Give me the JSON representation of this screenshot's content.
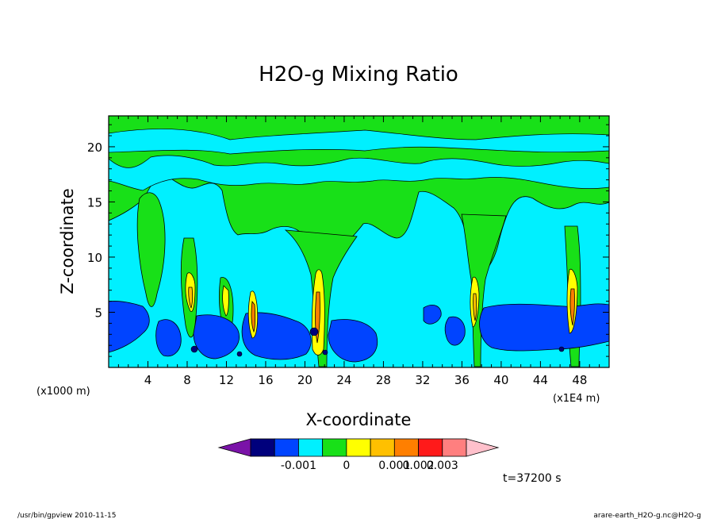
{
  "chart_data": {
    "type": "heatmap",
    "title": "H2O-g Mixing Ratio",
    "xlabel": "X-coordinate",
    "ylabel": "Z-coordinate",
    "x_unit_left": "(x1000 m)",
    "x_unit_right": "(x1E4 m)",
    "xlim": [
      0,
      51
    ],
    "ylim": [
      0,
      22.8
    ],
    "x_ticks": [
      4,
      8,
      12,
      16,
      20,
      24,
      28,
      32,
      36,
      40,
      44,
      48
    ],
    "y_ticks": [
      5,
      10,
      15,
      20
    ],
    "colorbar": {
      "colors": [
        "#7a13a8",
        "#00007c",
        "#0044ff",
        "#00f0ff",
        "#18e018",
        "#ffff00",
        "#ffc000",
        "#ff7f00",
        "#ff1a1a",
        "#ff7f7f",
        "#ffc0cb"
      ],
      "tick_labels": [
        "-0.001",
        "0",
        "0.001",
        "0.002",
        "0.003"
      ]
    },
    "background_band_colors": {
      "upper": "#18e018",
      "middle": "#00f0ff",
      "lower": "#0044ff",
      "core": "#ffff00",
      "core_inner": "#ffc000",
      "core_max": "#ff7f00"
    },
    "plumes_x": [
      4.5,
      8.3,
      12.2,
      15.0,
      21.3,
      37.5,
      47.3
    ]
  },
  "annotation_time": "t=37200 s",
  "footer_left": "/usr/bin/gpview    2010-11-15",
  "footer_right": "arare-earth_H2O-g.nc@H2O-g"
}
